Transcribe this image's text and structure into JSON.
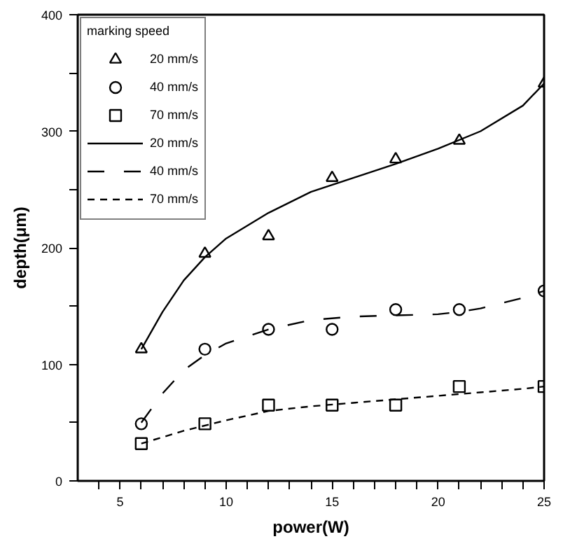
{
  "chart_data": {
    "type": "scatter",
    "xlabel": "power(W)",
    "ylabel": "depth(μm)",
    "legend_title": "marking speed",
    "legend": "top left",
    "grid": false,
    "xlim": [
      3,
      25
    ],
    "ylim": [
      0,
      400
    ],
    "xticks": [
      {
        "value": 4,
        "label": null
      },
      5,
      {
        "value": 6,
        "label": null
      },
      {
        "value": 7,
        "label": null
      },
      {
        "value": 8,
        "label": null
      },
      {
        "value": 9,
        "label": null
      },
      10,
      {
        "value": 11,
        "label": null
      },
      {
        "value": 12,
        "label": null
      },
      {
        "value": 13,
        "label": null
      },
      {
        "value": 14,
        "label": null
      },
      15,
      {
        "value": 16,
        "label": null
      },
      {
        "value": 17,
        "label": null
      },
      {
        "value": 18,
        "label": null
      },
      {
        "value": 19,
        "label": null
      },
      20,
      {
        "value": 21,
        "label": null
      },
      {
        "value": 22,
        "label": null
      },
      {
        "value": 23,
        "label": null
      },
      {
        "value": 24,
        "label": null
      },
      25
    ],
    "yticks": [
      0,
      {
        "value": 50,
        "label": null
      },
      100,
      {
        "value": 150,
        "label": null
      },
      200,
      {
        "value": 250,
        "label": null
      },
      300,
      {
        "value": 350,
        "label": null
      },
      400
    ],
    "series": [
      {
        "name": "20 mm/s",
        "marker": "triangle",
        "color": "#000000",
        "x": [
          6,
          9,
          12,
          15,
          18,
          21,
          25
        ],
        "values": [
          113,
          195,
          210,
          260,
          276,
          292,
          341
        ]
      },
      {
        "name": "40 mm/s",
        "marker": "circle",
        "color": "#000000",
        "x": [
          6,
          9,
          12,
          15,
          18,
          21,
          25
        ],
        "values": [
          49,
          113,
          130,
          130,
          147,
          147,
          163
        ]
      },
      {
        "name": "70 mm/s",
        "marker": "square",
        "color": "#000000",
        "x": [
          6,
          9,
          12,
          15,
          18,
          21,
          25
        ],
        "values": [
          32,
          49,
          65,
          65,
          65,
          81,
          81
        ]
      },
      {
        "name": "20 mm/s",
        "type": "line",
        "line_style": "solid",
        "color": "#000000",
        "x": [
          6,
          7,
          8,
          9,
          10,
          12,
          14,
          16,
          18,
          20,
          22,
          24,
          25
        ],
        "values": [
          113,
          145,
          172,
          192,
          208,
          230,
          248,
          260,
          272,
          285,
          300,
          322,
          341
        ]
      },
      {
        "name": "40 mm/s",
        "type": "line",
        "line_style": "dashed",
        "color": "#000000",
        "x": [
          6,
          7,
          8,
          9,
          10,
          12,
          14,
          16,
          18,
          20,
          21,
          22,
          24,
          25
        ],
        "values": [
          50,
          75,
          95,
          108,
          118,
          130,
          138,
          141,
          142,
          143,
          145,
          148,
          157,
          163
        ]
      },
      {
        "name": "70 mm/s",
        "type": "line",
        "line_style": "dashed",
        "color": "#000000",
        "x": [
          6,
          8,
          10,
          12,
          14,
          16,
          18,
          20,
          22,
          24,
          25
        ],
        "values": [
          32,
          43,
          52,
          60,
          64,
          67,
          70,
          73,
          76,
          79,
          81
        ]
      }
    ]
  }
}
